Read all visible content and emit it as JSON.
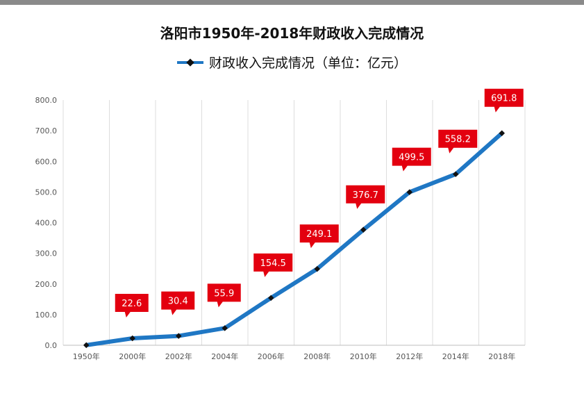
{
  "chart_data": {
    "type": "line",
    "title": "洛阳市1950年-2018年财政收入完成情况",
    "categories": [
      "1950年",
      "2000年",
      "2002年",
      "2004年",
      "2006年",
      "2008年",
      "2010年",
      "2012年",
      "2014年",
      "2018年"
    ],
    "series": [
      {
        "name": "财政收入完成情况（单位：亿元）",
        "values": [
          0.4,
          22.6,
          30.4,
          55.9,
          154.5,
          249.1,
          376.7,
          499.5,
          558.2,
          691.8
        ],
        "labels": [
          "",
          "22.6",
          "30.4",
          "55.9",
          "154.5",
          "249.1",
          "376.7",
          "499.5",
          "558.2",
          "691.8"
        ]
      }
    ],
    "ylim": [
      0,
      800
    ],
    "yticks": [
      "0.0",
      "100.0",
      "200.0",
      "300.0",
      "400.0",
      "500.0",
      "600.0",
      "700.0",
      "800.0"
    ],
    "grid": true,
    "legend_position": "top",
    "colors": {
      "line": "#1f77c4",
      "marker": "#111111",
      "label_bg": "#e3000f",
      "label_text": "#ffffff",
      "grid": "#dddddd"
    }
  }
}
